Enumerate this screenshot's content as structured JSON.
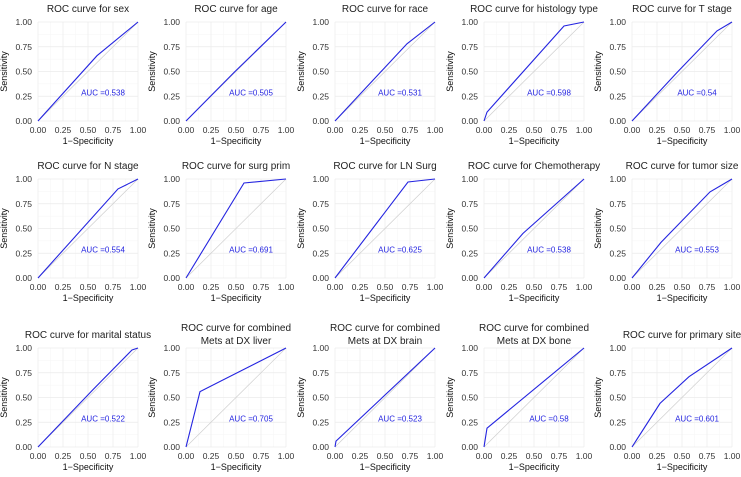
{
  "colors": {
    "roc_line": "#2424e0",
    "auc_text": "#2424e0",
    "diagonal": "#cfcfcf",
    "grid": "#ebebeb"
  },
  "chart_data": [
    {
      "type": "line",
      "title": [
        "ROC curve for sex"
      ],
      "xlabel": "1−Specificity",
      "ylabel": "Sensitivity",
      "xlim": [
        0,
        1
      ],
      "ylim": [
        0,
        1
      ],
      "ticks": [
        "0.00",
        "0.25",
        "0.50",
        "0.75",
        "1.00"
      ],
      "auc_label": "AUC =0.538",
      "points": [
        [
          0,
          0
        ],
        [
          0.59,
          0.66
        ],
        [
          1,
          1
        ]
      ]
    },
    {
      "type": "line",
      "title": [
        "ROC curve for age"
      ],
      "xlabel": "1−Specificity",
      "ylabel": "Sensitivity",
      "xlim": [
        0,
        1
      ],
      "ylim": [
        0,
        1
      ],
      "ticks": [
        "0.00",
        "0.25",
        "0.50",
        "0.75",
        "1.00"
      ],
      "auc_label": "AUC =0.505",
      "points": [
        [
          0,
          0
        ],
        [
          0.48,
          0.49
        ],
        [
          1,
          1
        ]
      ]
    },
    {
      "type": "line",
      "title": [
        "ROC curve for race"
      ],
      "xlabel": "1−Specificity",
      "ylabel": "Sensitivity",
      "xlim": [
        0,
        1
      ],
      "ylim": [
        0,
        1
      ],
      "ticks": [
        "0.00",
        "0.25",
        "0.50",
        "0.75",
        "1.00"
      ],
      "auc_label": "AUC =0.531",
      "points": [
        [
          0,
          0
        ],
        [
          0.72,
          0.78
        ],
        [
          1,
          1
        ]
      ]
    },
    {
      "type": "line",
      "title": [
        "ROC curve for histology type"
      ],
      "xlabel": "1−Specificity",
      "ylabel": "Sensitivity",
      "xlim": [
        0,
        1
      ],
      "ylim": [
        0,
        1
      ],
      "ticks": [
        "0.00",
        "0.25",
        "0.50",
        "0.75",
        "1.00"
      ],
      "auc_label": "AUC =0.598",
      "points": [
        [
          0,
          0
        ],
        [
          0.03,
          0.09
        ],
        [
          0.8,
          0.96
        ],
        [
          1,
          1
        ]
      ]
    },
    {
      "type": "line",
      "title": [
        "ROC curve for T stage"
      ],
      "xlabel": "1−Specificity",
      "ylabel": "Sensitivity",
      "xlim": [
        0,
        1
      ],
      "ylim": [
        0,
        1
      ],
      "ticks": [
        "0.00",
        "0.25",
        "0.50",
        "0.75",
        "1.00"
      ],
      "auc_label": "AUC =0.54",
      "points": [
        [
          0,
          0
        ],
        [
          0.45,
          0.49
        ],
        [
          0.85,
          0.91
        ],
        [
          1,
          1
        ]
      ]
    },
    {
      "type": "line",
      "title": [
        "ROC curve for N stage"
      ],
      "xlabel": "1−Specificity",
      "ylabel": "Sensitivity",
      "xlim": [
        0,
        1
      ],
      "ylim": [
        0,
        1
      ],
      "ticks": [
        "0.00",
        "0.25",
        "0.50",
        "0.75",
        "1.00"
      ],
      "auc_label": "AUC =0.554",
      "points": [
        [
          0,
          0
        ],
        [
          0.8,
          0.9
        ],
        [
          1,
          1
        ]
      ]
    },
    {
      "type": "line",
      "title": [
        "ROC curve for surg prim"
      ],
      "xlabel": "1−Specificity",
      "ylabel": "Sensitivity",
      "xlim": [
        0,
        1
      ],
      "ylim": [
        0,
        1
      ],
      "ticks": [
        "0.00",
        "0.25",
        "0.50",
        "0.75",
        "1.00"
      ],
      "auc_label": "AUC =0.691",
      "points": [
        [
          0,
          0
        ],
        [
          0.58,
          0.96
        ],
        [
          1,
          1
        ]
      ]
    },
    {
      "type": "line",
      "title": [
        "ROC curve for LN Surg"
      ],
      "xlabel": "1−Specificity",
      "ylabel": "Sensitivity",
      "xlim": [
        0,
        1
      ],
      "ylim": [
        0,
        1
      ],
      "ticks": [
        "0.00",
        "0.25",
        "0.50",
        "0.75",
        "1.00"
      ],
      "auc_label": "AUC =0.625",
      "points": [
        [
          0,
          0
        ],
        [
          0.73,
          0.97
        ],
        [
          1,
          1
        ]
      ]
    },
    {
      "type": "line",
      "title": [
        "ROC curve for Chemotherapy"
      ],
      "xlabel": "1−Specificity",
      "ylabel": "Sensitivity",
      "xlim": [
        0,
        1
      ],
      "ylim": [
        0,
        1
      ],
      "ticks": [
        "0.00",
        "0.25",
        "0.50",
        "0.75",
        "1.00"
      ],
      "auc_label": "AUC =0.538",
      "points": [
        [
          0,
          0
        ],
        [
          0.39,
          0.45
        ],
        [
          1,
          1
        ]
      ]
    },
    {
      "type": "line",
      "title": [
        "ROC curve for tumor size"
      ],
      "xlabel": "1−Specificity",
      "ylabel": "Sensitivity",
      "xlim": [
        0,
        1
      ],
      "ylim": [
        0,
        1
      ],
      "ticks": [
        "0.00",
        "0.25",
        "0.50",
        "0.75",
        "1.00"
      ],
      "auc_label": "AUC =0.553",
      "points": [
        [
          0,
          0
        ],
        [
          0.29,
          0.36
        ],
        [
          0.78,
          0.87
        ],
        [
          1,
          1
        ]
      ]
    },
    {
      "type": "line",
      "title": [
        "ROC curve for marital status"
      ],
      "xlabel": "1−Specificity",
      "ylabel": "Sensitivity",
      "xlim": [
        0,
        1
      ],
      "ylim": [
        0,
        1
      ],
      "ticks": [
        "0.00",
        "0.25",
        "0.50",
        "0.75",
        "1.00"
      ],
      "auc_label": "AUC =0.522",
      "points": [
        [
          0,
          0
        ],
        [
          0.55,
          0.58
        ],
        [
          0.94,
          0.98
        ],
        [
          1,
          1
        ]
      ]
    },
    {
      "type": "line",
      "title": [
        "ROC curve for combined",
        "Mets at DX liver"
      ],
      "xlabel": "1−Specificity",
      "ylabel": "Sensitivity",
      "xlim": [
        0,
        1
      ],
      "ylim": [
        0,
        1
      ],
      "ticks": [
        "0.00",
        "0.25",
        "0.50",
        "0.75",
        "1.00"
      ],
      "auc_label": "AUC =0.705",
      "points": [
        [
          0,
          0
        ],
        [
          0.14,
          0.56
        ],
        [
          1,
          1
        ]
      ]
    },
    {
      "type": "line",
      "title": [
        "ROC curve for combined",
        "Mets at DX brain"
      ],
      "xlabel": "1−Specificity",
      "ylabel": "Sensitivity",
      "xlim": [
        0,
        1
      ],
      "ylim": [
        0,
        1
      ],
      "ticks": [
        "0.00",
        "0.25",
        "0.50",
        "0.75",
        "1.00"
      ],
      "auc_label": "AUC =0.523",
      "points": [
        [
          0,
          0
        ],
        [
          0.01,
          0.06
        ],
        [
          1,
          1
        ]
      ]
    },
    {
      "type": "line",
      "title": [
        "ROC curve for combined",
        "Mets at DX bone"
      ],
      "xlabel": "1−Specificity",
      "ylabel": "Sensitivity",
      "xlim": [
        0,
        1
      ],
      "ylim": [
        0,
        1
      ],
      "ticks": [
        "0.00",
        "0.25",
        "0.50",
        "0.75",
        "1.00"
      ],
      "auc_label": "AUC =0.58",
      "points": [
        [
          0,
          0
        ],
        [
          0.03,
          0.19
        ],
        [
          1,
          1
        ]
      ]
    },
    {
      "type": "line",
      "title": [
        "ROC curve for primary site"
      ],
      "xlabel": "1−Specificity",
      "ylabel": "Sensitivity",
      "xlim": [
        0,
        1
      ],
      "ylim": [
        0,
        1
      ],
      "ticks": [
        "0.00",
        "0.25",
        "0.50",
        "0.75",
        "1.00"
      ],
      "auc_label": "AUC =0.601",
      "points": [
        [
          0,
          0
        ],
        [
          0.28,
          0.44
        ],
        [
          0.57,
          0.71
        ],
        [
          1,
          1
        ]
      ]
    }
  ]
}
